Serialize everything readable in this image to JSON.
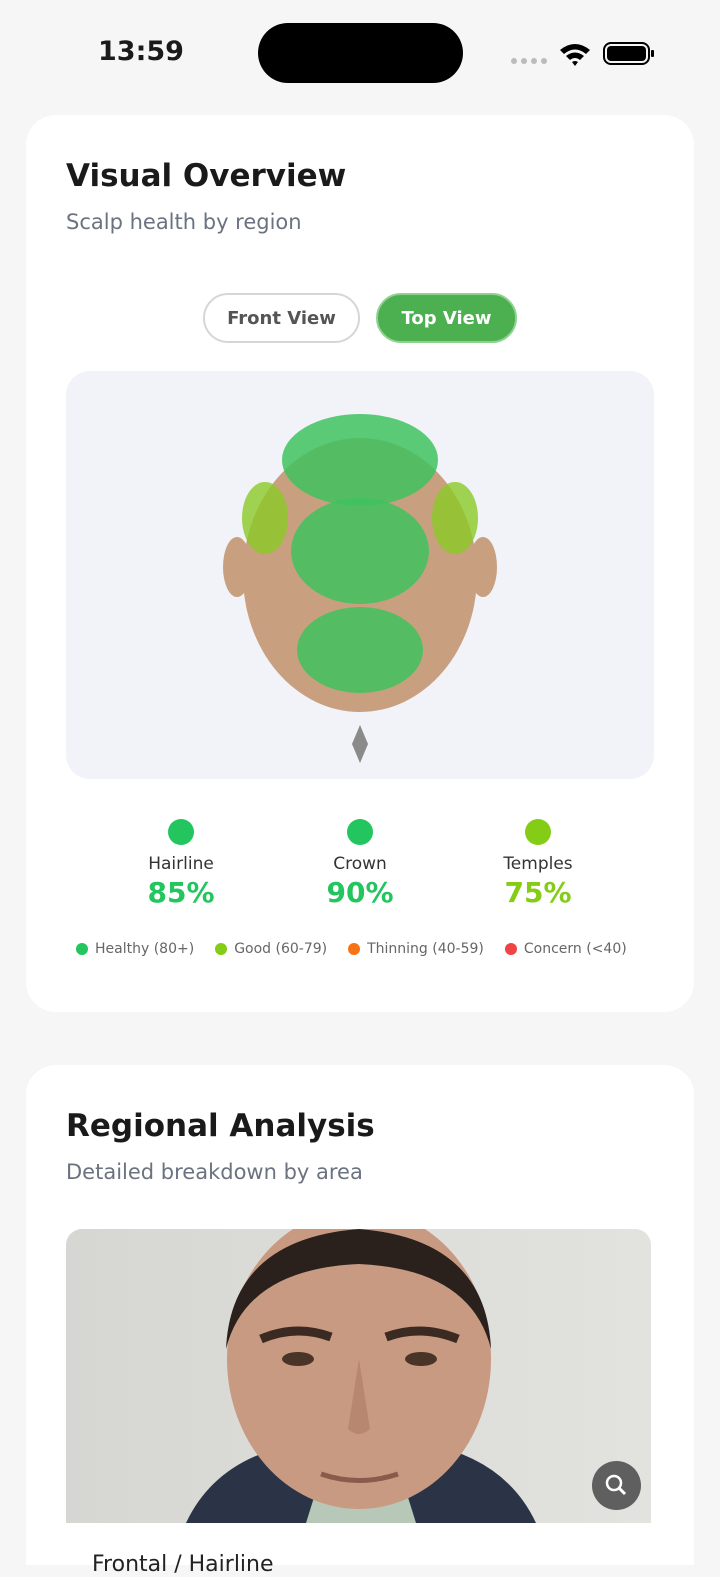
{
  "status_bar": {
    "time": "13:59"
  },
  "visual_overview": {
    "title": "Visual Overview",
    "subtitle": "Scalp health by region",
    "tabs": [
      "Front View",
      "Top View"
    ],
    "regions": [
      {
        "name": "Hairline",
        "score": "85%"
      },
      {
        "name": "Crown",
        "score": "90%"
      },
      {
        "name": "Temples",
        "score": "75%"
      }
    ],
    "legend": [
      "Healthy (80+)",
      "Good (60-79)",
      "Thinning (40-59)",
      "Concern (<40)"
    ]
  },
  "regional_analysis": {
    "title": "Regional Analysis",
    "subtitle": "Detailed breakdown by area",
    "first_item": "Frontal / Hairline"
  }
}
